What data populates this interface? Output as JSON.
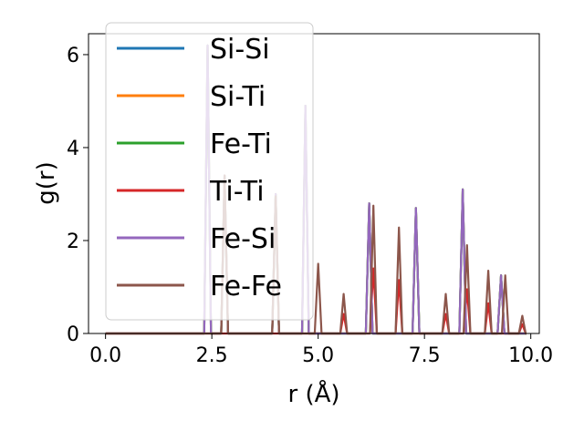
{
  "chart_data": {
    "type": "line",
    "title": "",
    "xlabel": "r (Å)",
    "ylabel": "g(r)",
    "xlim": [
      -0.4,
      10.2
    ],
    "ylim": [
      0,
      6.45
    ],
    "xticks": [
      0.0,
      2.5,
      5.0,
      7.5,
      10.0
    ],
    "xtick_labels": [
      "0.0",
      "2.5",
      "5.0",
      "7.5",
      "10.0"
    ],
    "yticks": [
      0,
      2,
      4,
      6
    ],
    "ytick_labels": [
      "0",
      "2",
      "4",
      "6"
    ],
    "grid": false,
    "legend_position": "upper-left",
    "x_range": [
      0,
      9.9
    ],
    "peak_half_width": 0.08,
    "series": [
      {
        "name": "Si-Si",
        "color": "#1f77b4",
        "peaks": [
          [
            2.4,
            6.2
          ],
          [
            2.8,
            3.4
          ],
          [
            4.0,
            3.0
          ],
          [
            4.7,
            4.9
          ],
          [
            6.2,
            2.8
          ],
          [
            7.3,
            2.7
          ],
          [
            8.4,
            3.1
          ],
          [
            9.3,
            1.25
          ]
        ]
      },
      {
        "name": "Si-Ti",
        "color": "#ff7f0e",
        "peaks": [
          [
            2.4,
            6.2
          ],
          [
            2.8,
            3.4
          ],
          [
            4.0,
            3.0
          ],
          [
            4.7,
            4.9
          ],
          [
            6.2,
            2.8
          ],
          [
            7.3,
            2.7
          ],
          [
            8.4,
            3.1
          ],
          [
            9.3,
            1.25
          ]
        ]
      },
      {
        "name": "Fe-Ti",
        "color": "#2ca02c",
        "peaks": [
          [
            2.4,
            6.2
          ],
          [
            2.8,
            3.4
          ],
          [
            4.0,
            3.0
          ],
          [
            4.7,
            4.9
          ],
          [
            6.2,
            2.8
          ],
          [
            7.3,
            2.7
          ],
          [
            8.4,
            3.1
          ],
          [
            9.3,
            1.25
          ]
        ]
      },
      {
        "name": "Ti-Ti",
        "color": "#d62728",
        "peaks": [
          [
            5.6,
            0.42
          ],
          [
            6.3,
            1.4
          ],
          [
            6.9,
            1.15
          ],
          [
            8.0,
            0.42
          ],
          [
            8.5,
            0.95
          ],
          [
            9.0,
            0.65
          ],
          [
            9.8,
            0.2
          ]
        ]
      },
      {
        "name": "Fe-Si",
        "color": "#9467bd",
        "peaks": [
          [
            2.4,
            6.2
          ],
          [
            2.8,
            3.4
          ],
          [
            4.0,
            3.0
          ],
          [
            4.7,
            4.9
          ],
          [
            6.2,
            2.8
          ],
          [
            7.3,
            2.7
          ],
          [
            8.4,
            3.1
          ],
          [
            9.3,
            1.25
          ]
        ]
      },
      {
        "name": "Fe-Fe",
        "color": "#8c564b",
        "peaks": [
          [
            2.4,
            0.0
          ],
          [
            2.8,
            3.4
          ],
          [
            4.0,
            2.95
          ],
          [
            5.0,
            1.5
          ],
          [
            5.6,
            0.85
          ],
          [
            6.3,
            2.75
          ],
          [
            6.9,
            2.28
          ],
          [
            8.0,
            0.85
          ],
          [
            8.5,
            1.9
          ],
          [
            9.0,
            1.35
          ],
          [
            9.4,
            1.25
          ],
          [
            9.8,
            0.38
          ]
        ]
      }
    ]
  }
}
